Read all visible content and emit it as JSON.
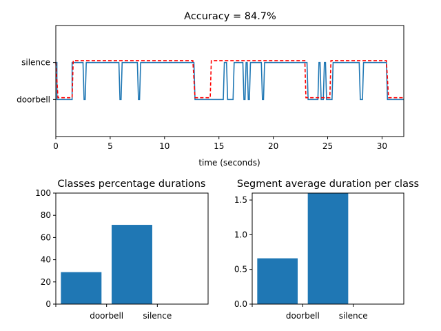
{
  "chart_data": [
    {
      "type": "line",
      "title": "Accuracy = 84.7%",
      "xlabel": "time (seconds)",
      "ylabel": "",
      "xlim": [
        0,
        32
      ],
      "ylim": [
        -1,
        2
      ],
      "x_ticks": [
        0,
        5,
        10,
        15,
        20,
        25,
        30
      ],
      "y_categories": [
        "doorbell",
        "silence"
      ],
      "grid": false,
      "colors": {
        "predicted": "#1f77b4",
        "ground_truth": "#ff0000"
      },
      "series": [
        {
          "style": "solid",
          "points": [
            [
              0,
              1
            ],
            [
              0.1,
              1
            ],
            [
              0.1,
              0
            ],
            [
              1.5,
              0
            ],
            [
              1.5,
              1
            ],
            [
              2.5,
              1
            ],
            [
              2.6,
              0
            ],
            [
              2.7,
              0
            ],
            [
              2.8,
              1
            ],
            [
              5.8,
              1
            ],
            [
              5.9,
              0
            ],
            [
              6.0,
              0
            ],
            [
              6.1,
              1
            ],
            [
              7.5,
              1
            ],
            [
              7.6,
              0
            ],
            [
              7.7,
              0
            ],
            [
              7.8,
              1
            ],
            [
              12.7,
              1
            ],
            [
              12.8,
              0
            ],
            [
              15.4,
              0
            ],
            [
              15.5,
              1
            ],
            [
              15.7,
              1
            ],
            [
              15.8,
              0
            ],
            [
              16.3,
              0
            ],
            [
              16.4,
              1
            ],
            [
              17.2,
              1
            ],
            [
              17.3,
              0
            ],
            [
              17.4,
              0
            ],
            [
              17.5,
              1
            ],
            [
              17.6,
              1
            ],
            [
              17.7,
              0
            ],
            [
              17.8,
              0
            ],
            [
              17.9,
              1
            ],
            [
              18.9,
              1
            ],
            [
              19.0,
              0
            ],
            [
              19.1,
              0
            ],
            [
              19.2,
              1
            ],
            [
              23.1,
              1
            ],
            [
              23.2,
              0
            ],
            [
              24.1,
              0
            ],
            [
              24.2,
              1
            ],
            [
              24.3,
              1
            ],
            [
              24.4,
              0
            ],
            [
              24.6,
              0
            ],
            [
              24.7,
              1
            ],
            [
              24.8,
              1
            ],
            [
              24.9,
              0
            ],
            [
              25.4,
              0
            ],
            [
              25.5,
              1
            ],
            [
              27.9,
              1
            ],
            [
              28.0,
              0
            ],
            [
              28.2,
              0
            ],
            [
              28.3,
              1
            ],
            [
              30.4,
              1
            ],
            [
              30.5,
              0
            ],
            [
              32,
              0
            ]
          ]
        },
        {
          "style": "dashed",
          "points": [
            [
              0,
              1
            ],
            [
              0.2,
              0.05
            ],
            [
              1.5,
              0.05
            ],
            [
              1.6,
              1.05
            ],
            [
              12.6,
              1.05
            ],
            [
              12.8,
              0.05
            ],
            [
              14.2,
              0.05
            ],
            [
              14.3,
              1.05
            ],
            [
              22.9,
              1.05
            ],
            [
              23.0,
              0.05
            ],
            [
              25.2,
              0.05
            ],
            [
              25.3,
              1.05
            ],
            [
              30.4,
              1.05
            ],
            [
              30.6,
              0.05
            ],
            [
              32,
              0.05
            ]
          ]
        }
      ]
    },
    {
      "type": "bar",
      "title": "Classes percentage durations",
      "categories": [
        "doorbell",
        "silence"
      ],
      "values": [
        28.8,
        71.4
      ],
      "ylim": [
        0,
        100
      ],
      "y_ticks": [
        0,
        20,
        40,
        60,
        80,
        100
      ],
      "xlim": [
        -0.5,
        2.5
      ],
      "color": "#1f77b4"
    },
    {
      "type": "bar",
      "title": "Segment average duration per class",
      "categories": [
        "doorbell",
        "silence"
      ],
      "values": [
        0.66,
        1.62
      ],
      "ylim": [
        0,
        1.6
      ],
      "y_ticks": [
        0.0,
        0.5,
        1.0,
        1.5
      ],
      "y_tick_labels": [
        "0.0",
        "0.5",
        "1.0",
        "1.5"
      ],
      "xlim": [
        -0.5,
        2.5
      ],
      "color": "#1f77b4"
    }
  ]
}
